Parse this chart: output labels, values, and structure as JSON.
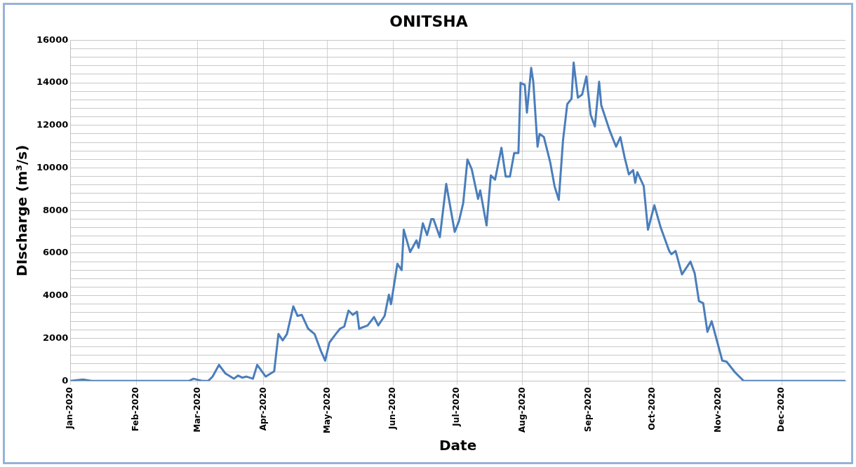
{
  "chart_data": {
    "type": "line",
    "title": "ONITSHA",
    "xlabel": "Date",
    "ylabel": "DIscharge (m³/s)",
    "color": "#4a7ebb",
    "x": [
      "2020-01-01",
      "2020-01-07",
      "2020-01-11",
      "2020-02-26",
      "2020-02-28",
      "2020-03-03",
      "2020-03-06",
      "2020-03-08",
      "2020-03-11",
      "2020-03-14",
      "2020-03-18",
      "2020-03-20",
      "2020-03-22",
      "2020-03-24",
      "2020-03-27",
      "2020-03-29",
      "2020-04-02",
      "2020-04-06",
      "2020-04-08",
      "2020-04-10",
      "2020-04-12",
      "2020-04-15",
      "2020-04-17",
      "2020-04-19",
      "2020-04-22",
      "2020-04-25",
      "2020-04-28",
      "2020-04-30",
      "2020-05-02",
      "2020-05-05",
      "2020-05-07",
      "2020-05-09",
      "2020-05-11",
      "2020-05-13",
      "2020-05-15",
      "2020-05-16",
      "2020-05-20",
      "2020-05-23",
      "2020-05-25",
      "2020-05-28",
      "2020-05-30",
      "2020-05-31",
      "2020-06-03",
      "2020-06-05",
      "2020-06-06",
      "2020-06-09",
      "2020-06-12",
      "2020-06-13",
      "2020-06-15",
      "2020-06-17",
      "2020-06-19",
      "2020-06-20",
      "2020-06-23",
      "2020-06-26",
      "2020-06-30",
      "2020-07-02",
      "2020-07-04",
      "2020-07-06",
      "2020-07-08",
      "2020-07-11",
      "2020-07-12",
      "2020-07-15",
      "2020-07-17",
      "2020-07-19",
      "2020-07-22",
      "2020-07-24",
      "2020-07-26",
      "2020-07-28",
      "2020-07-30",
      "2020-07-31",
      "2020-08-02",
      "2020-08-03",
      "2020-08-05",
      "2020-08-06",
      "2020-08-08",
      "2020-08-09",
      "2020-08-11",
      "2020-08-14",
      "2020-08-16",
      "2020-08-18",
      "2020-08-20",
      "2020-08-22",
      "2020-08-24",
      "2020-08-25",
      "2020-08-27",
      "2020-08-29",
      "2020-08-31",
      "2020-09-02",
      "2020-09-04",
      "2020-09-06",
      "2020-09-07",
      "2020-09-11",
      "2020-09-14",
      "2020-09-16",
      "2020-09-18",
      "2020-09-20",
      "2020-09-22",
      "2020-09-23",
      "2020-09-24",
      "2020-09-27",
      "2020-09-29",
      "2020-10-02",
      "2020-10-05",
      "2020-10-09",
      "2020-10-10",
      "2020-10-12",
      "2020-10-15",
      "2020-10-19",
      "2020-10-21",
      "2020-10-23",
      "2020-10-25",
      "2020-10-27",
      "2020-10-29",
      "2020-11-03",
      "2020-11-05",
      "2020-11-09",
      "2020-11-13",
      "2020-11-18",
      "2020-12-31"
    ],
    "values": [
      0,
      60,
      0,
      0,
      100,
      0,
      0,
      200,
      750,
      350,
      100,
      250,
      150,
      200,
      100,
      750,
      200,
      450,
      2200,
      1900,
      2200,
      3500,
      3050,
      3100,
      2450,
      2200,
      1400,
      950,
      1800,
      2200,
      2450,
      2550,
      3300,
      3100,
      3250,
      2450,
      2600,
      3000,
      2600,
      3050,
      4050,
      3600,
      5500,
      5200,
      7100,
      6050,
      6600,
      6250,
      7400,
      6850,
      7600,
      7600,
      6750,
      9250,
      7000,
      7500,
      8350,
      10400,
      9950,
      8550,
      8950,
      7300,
      9650,
      9450,
      10950,
      9600,
      9600,
      10700,
      10700,
      14000,
      13900,
      12600,
      14700,
      14050,
      11000,
      11600,
      11450,
      10250,
      9150,
      8500,
      11300,
      13000,
      13250,
      14950,
      13300,
      13450,
      14300,
      12500,
      11950,
      14050,
      12950,
      11750,
      11000,
      11450,
      10500,
      9700,
      9900,
      9300,
      9800,
      9150,
      7100,
      8250,
      7200,
      6100,
      5950,
      6100,
      5000,
      5600,
      5050,
      3750,
      3650,
      2300,
      2800,
      950,
      900,
      400,
      0,
      0,
      0
    ],
    "xlim": [
      "2020-01-01",
      "2020-12-31"
    ],
    "xticks": [
      {
        "value": "2020-01-01",
        "label": "Jan-2020"
      },
      {
        "value": "2020-02-01",
        "label": "Feb-2020"
      },
      {
        "value": "2020-03-01",
        "label": "Mar-2020"
      },
      {
        "value": "2020-04-01",
        "label": "Apr-2020"
      },
      {
        "value": "2020-05-01",
        "label": "May-2020"
      },
      {
        "value": "2020-06-01",
        "label": "Jun-2020"
      },
      {
        "value": "2020-07-01",
        "label": "Jul-2020"
      },
      {
        "value": "2020-08-01",
        "label": "Aug-2020"
      },
      {
        "value": "2020-09-01",
        "label": "Sep-2020"
      },
      {
        "value": "2020-10-01",
        "label": "Oct-2020"
      },
      {
        "value": "2020-11-01",
        "label": "Nov-2020"
      },
      {
        "value": "2020-12-01",
        "label": "Dec-2020"
      }
    ],
    "ylim": [
      0,
      16000
    ],
    "yticks": [
      0,
      {
        "value": 400,
        "label": null
      },
      {
        "value": 800,
        "label": null
      },
      {
        "value": 1200,
        "label": null
      },
      {
        "value": 1600,
        "label": null
      },
      2000,
      {
        "value": 2400,
        "label": null
      },
      {
        "value": 2800,
        "label": null
      },
      {
        "value": 3200,
        "label": null
      },
      {
        "value": 3600,
        "label": null
      },
      4000,
      {
        "value": 4400,
        "label": null
      },
      {
        "value": 4800,
        "label": null
      },
      {
        "value": 5200,
        "label": null
      },
      {
        "value": 5600,
        "label": null
      },
      6000,
      {
        "value": 6400,
        "label": null
      },
      {
        "value": 6800,
        "label": null
      },
      {
        "value": 7200,
        "label": null
      },
      {
        "value": 7600,
        "label": null
      },
      8000,
      {
        "value": 8400,
        "label": null
      },
      {
        "value": 8800,
        "label": null
      },
      {
        "value": 9200,
        "label": null
      },
      {
        "value": 9600,
        "label": null
      },
      10000,
      {
        "value": 10400,
        "label": null
      },
      {
        "value": 10800,
        "label": null
      },
      {
        "value": 11200,
        "label": null
      },
      {
        "value": 11600,
        "label": null
      },
      12000,
      {
        "value": 12400,
        "label": null
      },
      {
        "value": 12800,
        "label": null
      },
      {
        "value": 13200,
        "label": null
      },
      {
        "value": 13600,
        "label": null
      },
      14000,
      {
        "value": 14400,
        "label": null
      },
      {
        "value": 14800,
        "label": null
      },
      {
        "value": 15200,
        "label": null
      },
      {
        "value": 15600,
        "label": null
      },
      16000
    ],
    "grid": true
  }
}
